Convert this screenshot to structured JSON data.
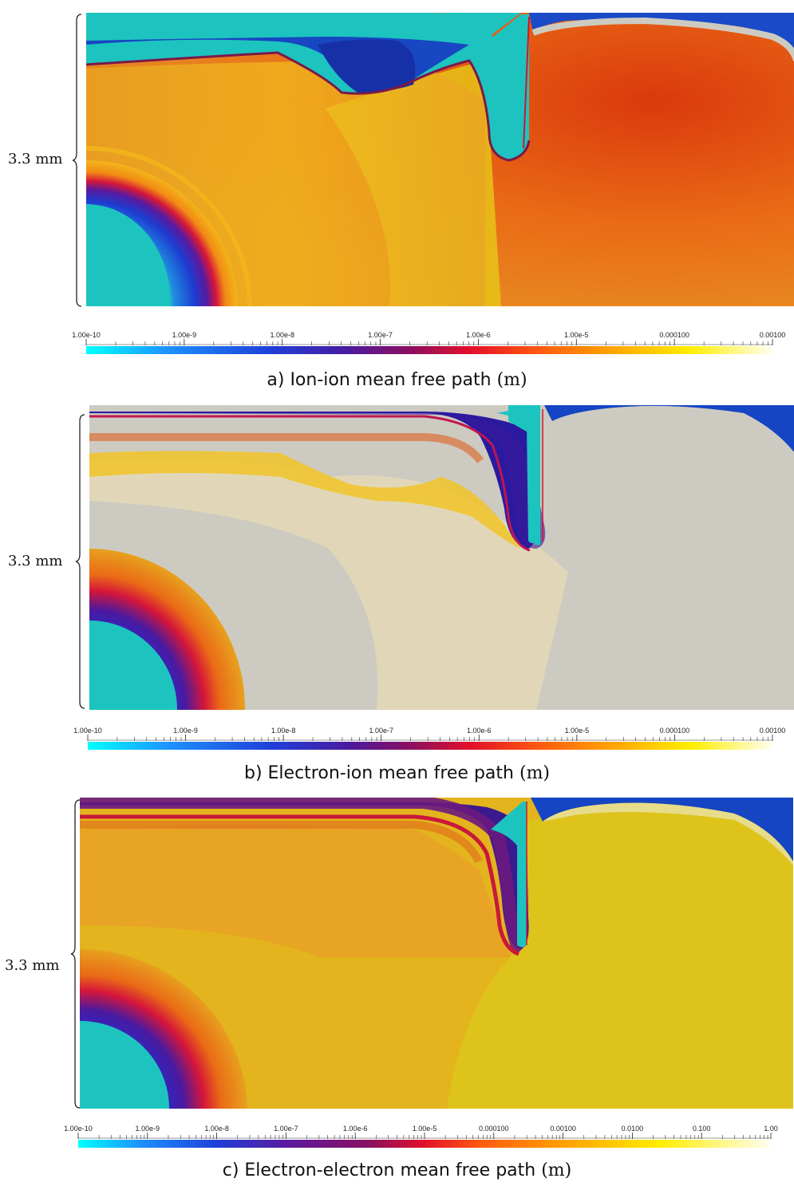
{
  "figure": {
    "scale_label": "3.3 mm",
    "colors": {
      "cyan_region": "#1dc4bf",
      "deep_blue": "#1047c6",
      "gray_region": "#cdcbc1"
    },
    "panels": [
      {
        "id": "a",
        "caption_main": "a) Ion-ion mean free path",
        "caption_unit": "(m)",
        "colorbar_ticks": [
          "1.00e-10",
          "1.00e-9",
          "1.00e-8",
          "1.00e-7",
          "1.00e-6",
          "1.00e-5",
          "0.000100",
          "0.00100"
        ]
      },
      {
        "id": "b",
        "caption_main": "b) Electron-ion mean free path",
        "caption_unit": "(m)",
        "colorbar_ticks": [
          "1.00e-10",
          "1.00e-9",
          "1.00e-8",
          "1.00e-7",
          "1.00e-6",
          "1.00e-5",
          "0.000100",
          "0.00100"
        ]
      },
      {
        "id": "c",
        "caption_main": "c) Electron-electron mean free path",
        "caption_unit": "(m)",
        "colorbar_ticks": [
          "1.00e-10",
          "1.00e-9",
          "1.00e-8",
          "1.00e-7",
          "1.00e-6",
          "1.00e-5",
          "0.000100",
          "0.00100",
          "0.0100",
          "0.100",
          "1.00"
        ]
      }
    ]
  }
}
